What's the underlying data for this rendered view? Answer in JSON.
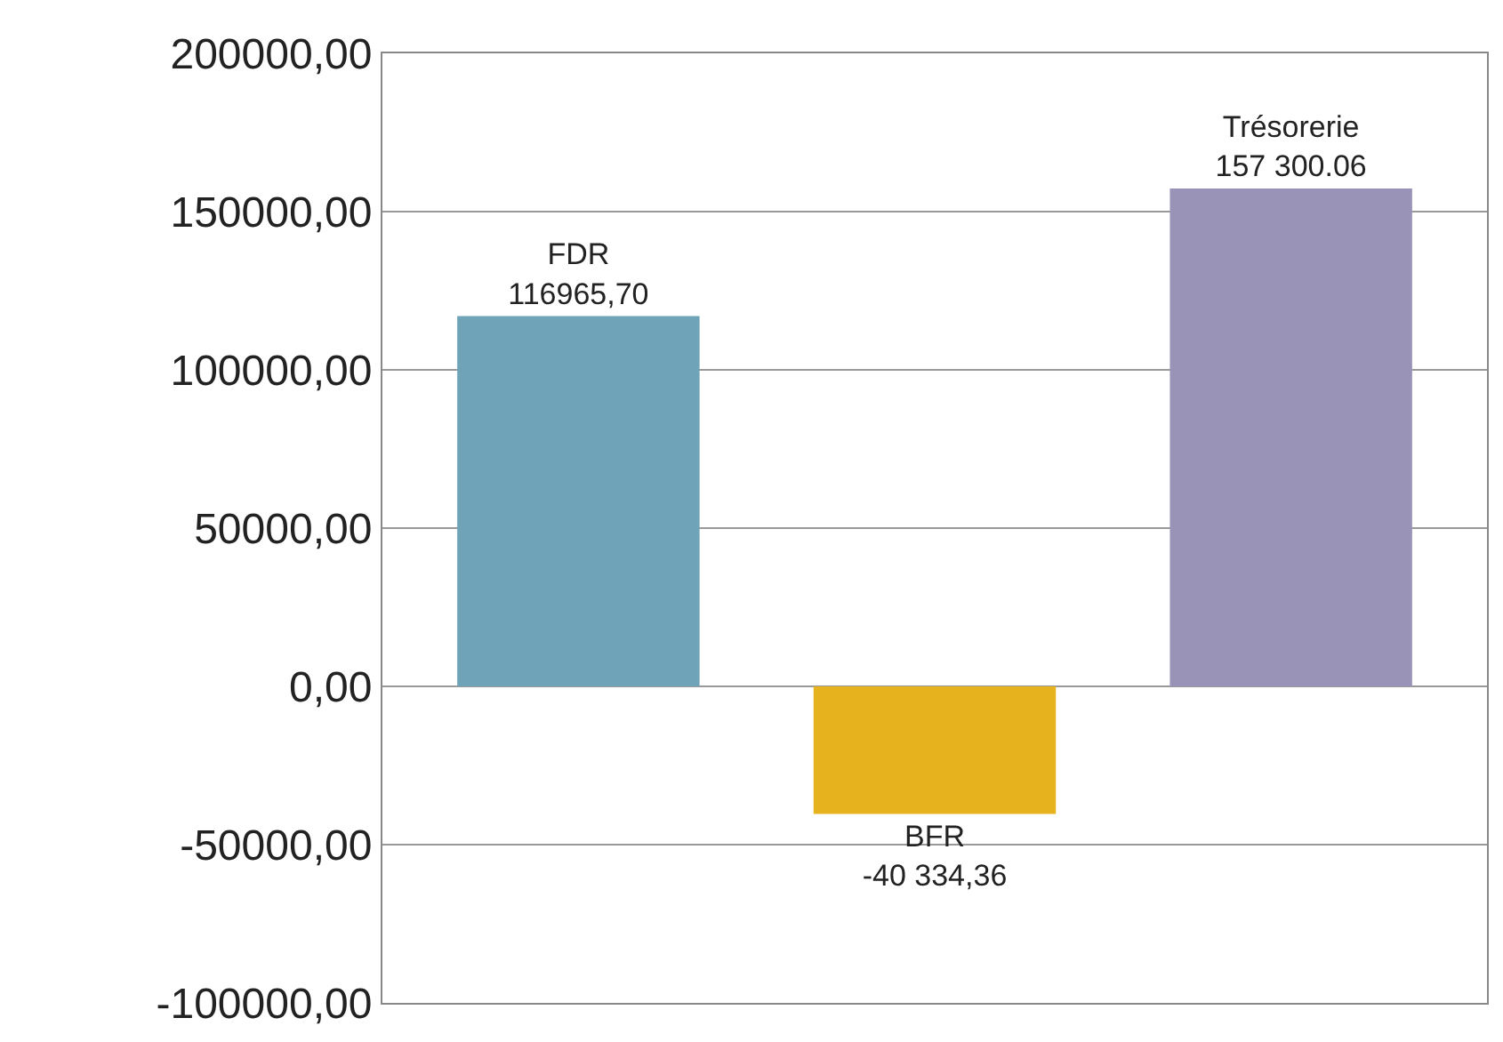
{
  "chart_data": {
    "type": "bar",
    "categories": [
      "FDR",
      "BFR",
      "Trésorerie"
    ],
    "values": [
      116965.7,
      -40334.36,
      157300.06
    ],
    "colors": [
      "#6fa3b8",
      "#e6b31e",
      "#9a93b8"
    ],
    "value_labels": [
      "116965,70",
      "-40 334,36",
      "157 300.06"
    ],
    "ylim": [
      -100000,
      200000
    ],
    "yticks": [
      {
        "value": -100000,
        "label": "-100000,00"
      },
      {
        "value": -50000,
        "label": "-50000,00"
      },
      {
        "value": 0,
        "label": "0,00"
      },
      {
        "value": 50000,
        "label": "50000,00"
      },
      {
        "value": 100000,
        "label": "100000,00"
      },
      {
        "value": 150000,
        "label": "150000,00"
      },
      {
        "value": 200000,
        "label": "200000,00"
      }
    ],
    "grid": "y",
    "tick_labels": "y",
    "legend": false
  }
}
